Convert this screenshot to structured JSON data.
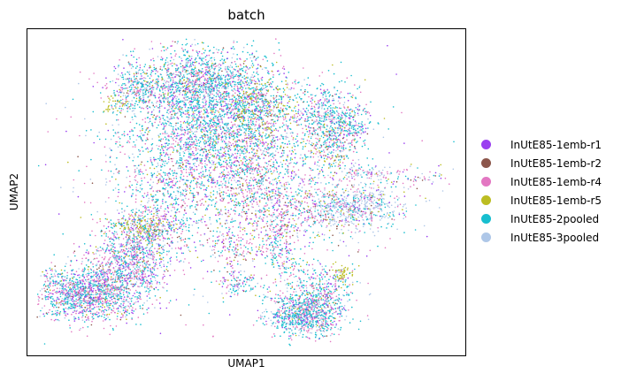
{
  "chart_data": {
    "type": "scatter",
    "title": "batch",
    "xlabel": "UMAP1",
    "ylabel": "UMAP2",
    "grid": false,
    "ticks": "none",
    "legend_placement": "right",
    "series": [
      {
        "name": "InUtE85-1emb-r1",
        "color": "#9a3ff0"
      },
      {
        "name": "InUtE85-1emb-r2",
        "color": "#8c564b"
      },
      {
        "name": "InUtE85-1emb-r4",
        "color": "#e377c2"
      },
      {
        "name": "InUtE85-1emb-r5",
        "color": "#bcbd22"
      },
      {
        "name": "InUtE85-2pooled",
        "color": "#17becf"
      },
      {
        "name": "InUtE85-3pooled",
        "color": "#aec7e8"
      }
    ],
    "clusters": [
      {
        "x": 0.42,
        "y": 0.72,
        "sx": 0.11,
        "sy": 0.12,
        "n": 2600,
        "mix": [
          0.1,
          0.03,
          0.22,
          0.04,
          0.46,
          0.15
        ]
      },
      {
        "x": 0.38,
        "y": 0.86,
        "sx": 0.07,
        "sy": 0.05,
        "n": 900,
        "mix": [
          0.1,
          0.03,
          0.2,
          0.05,
          0.47,
          0.15
        ]
      },
      {
        "x": 0.53,
        "y": 0.77,
        "sx": 0.04,
        "sy": 0.06,
        "n": 450,
        "mix": [
          0.08,
          0.03,
          0.2,
          0.3,
          0.29,
          0.1
        ]
      },
      {
        "x": 0.24,
        "y": 0.84,
        "sx": 0.03,
        "sy": 0.035,
        "n": 250,
        "mix": [
          0.1,
          0.03,
          0.2,
          0.07,
          0.4,
          0.2
        ]
      },
      {
        "x": 0.19,
        "y": 0.79,
        "sx": 0.015,
        "sy": 0.015,
        "n": 50,
        "mix": [
          0.05,
          0.02,
          0.08,
          0.75,
          0.05,
          0.05
        ]
      },
      {
        "x": 0.69,
        "y": 0.75,
        "sx": 0.035,
        "sy": 0.05,
        "n": 400,
        "mix": [
          0.1,
          0.03,
          0.22,
          0.04,
          0.46,
          0.15
        ]
      },
      {
        "x": 0.7,
        "y": 0.65,
        "sx": 0.03,
        "sy": 0.04,
        "n": 200,
        "mix": [
          0.1,
          0.03,
          0.3,
          0.15,
          0.3,
          0.12
        ]
      },
      {
        "x": 0.75,
        "y": 0.72,
        "sx": 0.025,
        "sy": 0.04,
        "n": 200,
        "mix": [
          0.1,
          0.03,
          0.2,
          0.04,
          0.48,
          0.15
        ]
      },
      {
        "x": 0.76,
        "y": 0.45,
        "sx": 0.06,
        "sy": 0.035,
        "n": 600,
        "mix": [
          0.05,
          0.03,
          0.12,
          0.05,
          0.15,
          0.6
        ]
      },
      {
        "x": 0.6,
        "y": 0.46,
        "sx": 0.1,
        "sy": 0.06,
        "n": 600,
        "mix": [
          0.1,
          0.1,
          0.3,
          0.12,
          0.25,
          0.13
        ]
      },
      {
        "x": 0.51,
        "y": 0.58,
        "sx": 0.07,
        "sy": 0.05,
        "n": 300,
        "mix": [
          0.12,
          0.05,
          0.35,
          0.1,
          0.25,
          0.13
        ]
      },
      {
        "x": 0.78,
        "y": 0.56,
        "sx": 0.04,
        "sy": 0.015,
        "n": 120,
        "mix": [
          0.05,
          0.03,
          0.3,
          0.05,
          0.2,
          0.37
        ]
      },
      {
        "x": 0.12,
        "y": 0.17,
        "sx": 0.065,
        "sy": 0.045,
        "n": 1400,
        "mix": [
          0.14,
          0.03,
          0.26,
          0.04,
          0.38,
          0.15
        ]
      },
      {
        "x": 0.22,
        "y": 0.27,
        "sx": 0.045,
        "sy": 0.06,
        "n": 800,
        "mix": [
          0.15,
          0.03,
          0.3,
          0.05,
          0.3,
          0.17
        ]
      },
      {
        "x": 0.28,
        "y": 0.38,
        "sx": 0.05,
        "sy": 0.06,
        "n": 400,
        "mix": [
          0.12,
          0.03,
          0.3,
          0.08,
          0.3,
          0.17
        ]
      },
      {
        "x": 0.25,
        "y": 0.39,
        "sx": 0.04,
        "sy": 0.02,
        "n": 220,
        "mix": [
          0.05,
          0.02,
          0.1,
          0.45,
          0.1,
          0.28
        ]
      },
      {
        "x": 0.33,
        "y": 0.52,
        "sx": 0.05,
        "sy": 0.05,
        "n": 200,
        "mix": [
          0.12,
          0.03,
          0.3,
          0.05,
          0.35,
          0.15
        ]
      },
      {
        "x": 0.47,
        "y": 0.32,
        "sx": 0.04,
        "sy": 0.035,
        "n": 130,
        "mix": [
          0.1,
          0.03,
          0.6,
          0.05,
          0.15,
          0.07
        ]
      },
      {
        "x": 0.48,
        "y": 0.2,
        "sx": 0.025,
        "sy": 0.02,
        "n": 100,
        "mix": [
          0.1,
          0.03,
          0.25,
          0.05,
          0.45,
          0.12
        ]
      },
      {
        "x": 0.58,
        "y": 0.3,
        "sx": 0.025,
        "sy": 0.07,
        "n": 200,
        "mix": [
          0.12,
          0.03,
          0.3,
          0.05,
          0.38,
          0.12
        ]
      },
      {
        "x": 0.64,
        "y": 0.1,
        "sx": 0.045,
        "sy": 0.035,
        "n": 800,
        "mix": [
          0.1,
          0.03,
          0.22,
          0.04,
          0.46,
          0.15
        ]
      },
      {
        "x": 0.68,
        "y": 0.17,
        "sx": 0.04,
        "sy": 0.05,
        "n": 400,
        "mix": [
          0.1,
          0.03,
          0.25,
          0.05,
          0.42,
          0.15
        ]
      },
      {
        "x": 0.73,
        "y": 0.23,
        "sx": 0.012,
        "sy": 0.02,
        "n": 60,
        "mix": [
          0.05,
          0.02,
          0.05,
          0.8,
          0.04,
          0.04
        ]
      },
      {
        "x": 0.57,
        "y": 0.38,
        "sx": 0.015,
        "sy": 0.015,
        "n": 40,
        "mix": [
          0.1,
          0.03,
          0.7,
          0.05,
          0.07,
          0.05
        ]
      },
      {
        "x": 0.9,
        "y": 0.55,
        "sx": 0.04,
        "sy": 0.02,
        "n": 60,
        "mix": [
          0.1,
          0.03,
          0.35,
          0.05,
          0.27,
          0.2
        ]
      },
      {
        "x": 0.45,
        "y": 0.5,
        "sx": 0.17,
        "sy": 0.18,
        "n": 700,
        "mix": [
          0.15,
          0.05,
          0.3,
          0.08,
          0.27,
          0.15
        ]
      }
    ]
  }
}
